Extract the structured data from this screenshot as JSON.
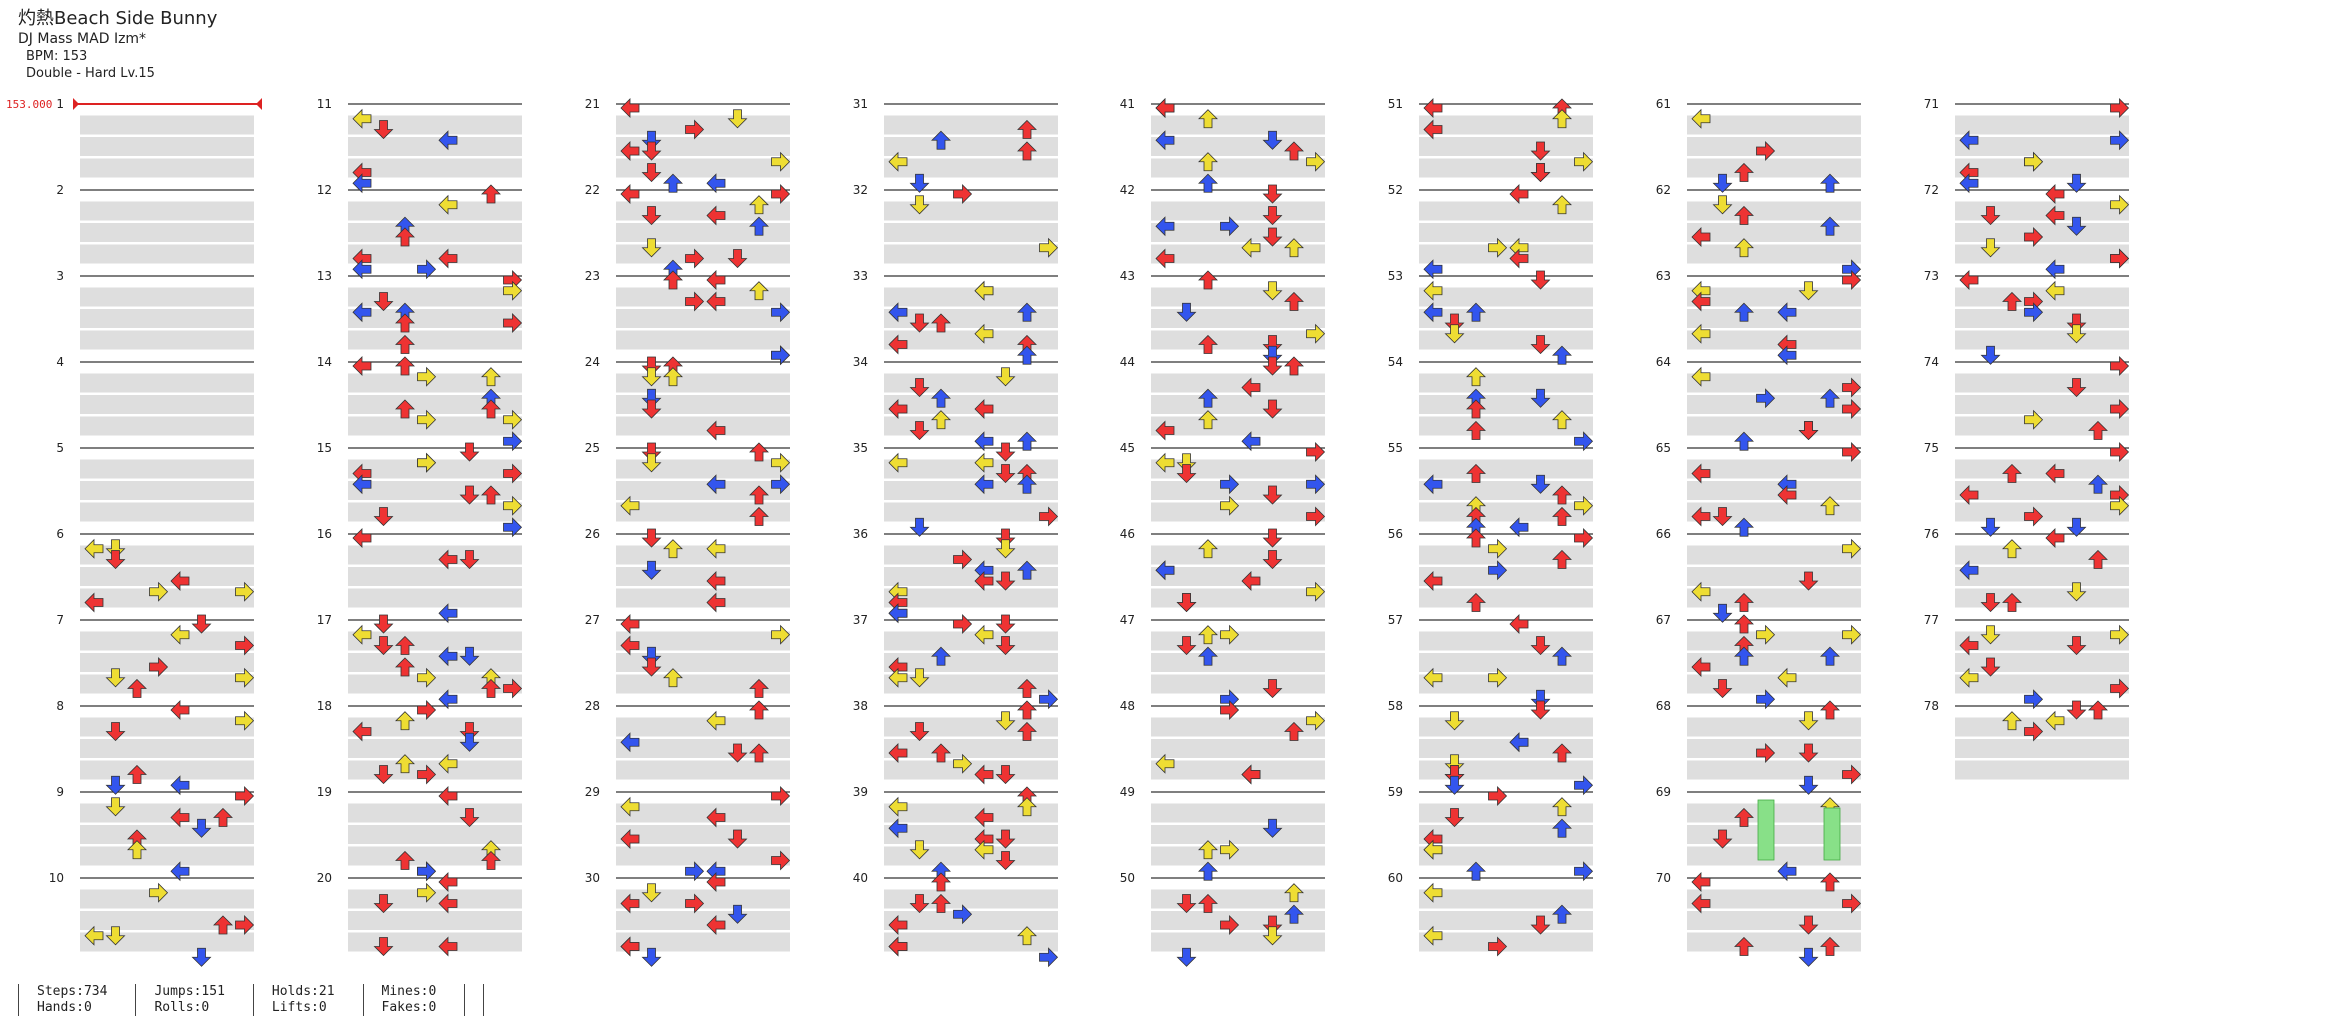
{
  "song": {
    "title": "灼熱Beach Side Bunny",
    "artist": "DJ Mass MAD Izm*",
    "bpm_label": "BPM: 153",
    "difficulty_label": "Double - Hard  Lv.15"
  },
  "bpm_marker": "153.000",
  "measures": [
    "1",
    "2",
    "3",
    "4",
    "5",
    "6",
    "7",
    "8",
    "9",
    "10",
    "11",
    "12",
    "13",
    "14",
    "15",
    "16",
    "17",
    "18",
    "19",
    "20",
    "21",
    "22",
    "23",
    "24",
    "25",
    "26",
    "27",
    "28",
    "29",
    "30",
    "31",
    "32",
    "33",
    "34",
    "35",
    "36",
    "37",
    "38",
    "39",
    "40",
    "41",
    "42",
    "43",
    "44",
    "45",
    "46",
    "47",
    "48",
    "49",
    "50",
    "51",
    "52",
    "53",
    "54",
    "55",
    "56",
    "57",
    "58",
    "59",
    "60",
    "61",
    "62",
    "63",
    "64",
    "65",
    "66",
    "67",
    "68",
    "69",
    "70",
    "71",
    "72",
    "73",
    "74",
    "75",
    "76",
    "77",
    "78"
  ],
  "colors": {
    "quarter": "#ee3333",
    "eighth": "#3355ee",
    "sixteenth": "#eedd33",
    "twelfth": "#9933ee",
    "hold": "#88e088",
    "bpm": "#dd2222"
  },
  "stats": {
    "steps": "Steps:734",
    "jumps": "Jumps:151",
    "holds": "Holds:21",
    "mines": "Mines:0",
    "hands": "Hands:0",
    "rolls": "Rolls:0",
    "lifts": "Lifts:0",
    "fakes": "Fakes:0"
  }
}
